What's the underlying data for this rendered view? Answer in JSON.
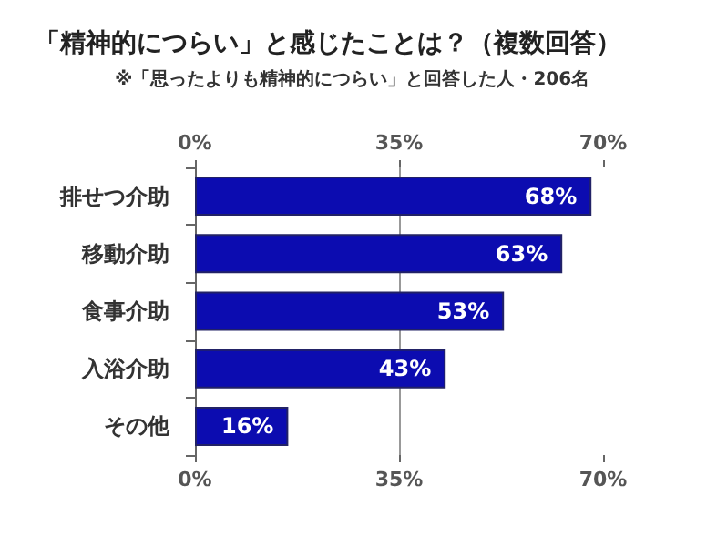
{
  "chart_data": {
    "type": "bar",
    "orientation": "horizontal",
    "title": "「精神的につらい」と感じたことは？（複数回答）",
    "subtitle": "※「思ったよりも精神的につらい」と回答した人・206名",
    "categories": [
      "排せつ介助",
      "移動介助",
      "食事介助",
      "入浴介助",
      "その他"
    ],
    "values": [
      68,
      63,
      53,
      43,
      16
    ],
    "value_labels": [
      "68%",
      "63%",
      "53%",
      "43%",
      "16%"
    ],
    "color": "#0c0cb0",
    "xlim": [
      0,
      70
    ],
    "xticks": [
      {
        "value": 0,
        "label": "0%"
      },
      {
        "value": 35,
        "label": "35%"
      },
      {
        "value": 70,
        "label": "70%"
      }
    ],
    "x2lim": [
      0,
      70
    ],
    "x2ticks": [
      {
        "value": 0,
        "label": "0%"
      },
      {
        "value": 35,
        "label": "35%"
      },
      {
        "value": 70,
        "label": "70%"
      }
    ],
    "grid": "x"
  }
}
